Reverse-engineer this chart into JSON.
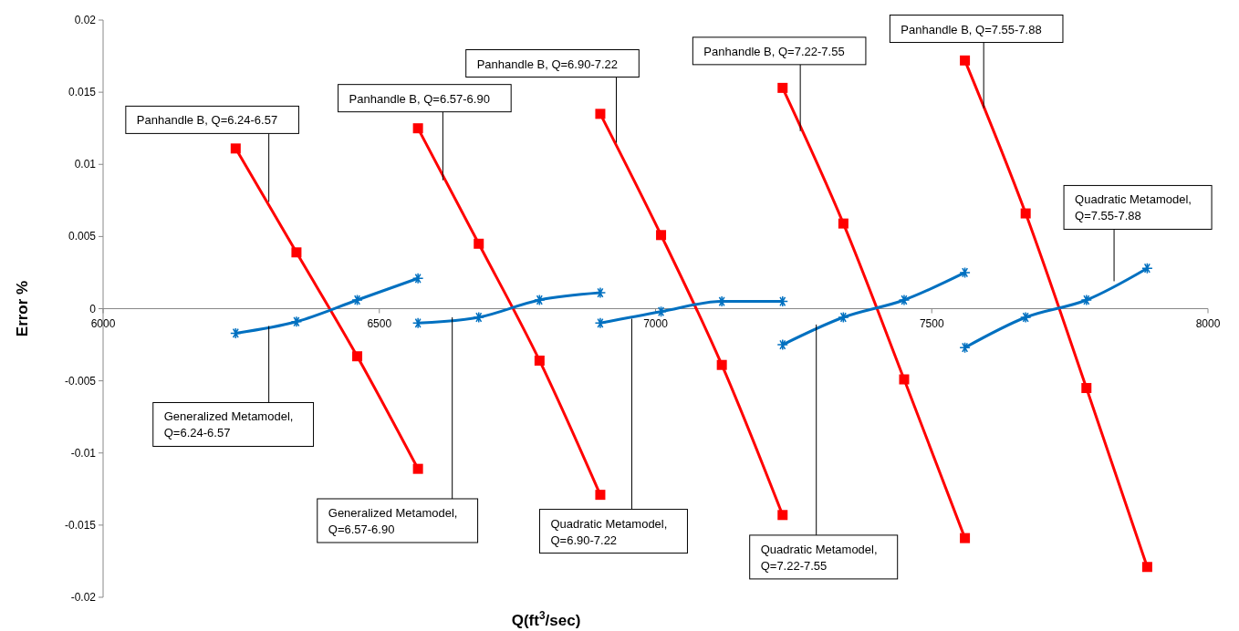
{
  "chart_data": {
    "type": "line",
    "xlabel": "Q(ft$^{3}$/sec)",
    "ylabel": "Error %",
    "xlim": [
      6000,
      8000
    ],
    "xticks": [
      6000,
      6500,
      7000,
      7500,
      8000
    ],
    "ylim": [
      -0.02,
      0.02
    ],
    "yticks": [
      -0.02,
      -0.015,
      -0.01,
      -0.005,
      0,
      0.005,
      0.01,
      0.015,
      0.02
    ],
    "grid": false,
    "line_style": "solid",
    "series": [
      {
        "color": "#ff0000",
        "marker": "square",
        "x": [
          6240,
          6350,
          6460,
          6570
        ],
        "values": [
          0.0111,
          0.0039,
          -0.0033,
          -0.0111
        ]
      },
      {
        "color": "#0070c0",
        "marker": "cross",
        "x": [
          6240,
          6350,
          6460,
          6570
        ],
        "values": [
          -0.0017,
          -0.0009,
          0.0006,
          0.0021
        ]
      },
      {
        "color": "#ff0000",
        "marker": "square",
        "x": [
          6570,
          6680,
          6790,
          6900
        ],
        "values": [
          0.0125,
          0.0045,
          -0.0036,
          -0.0129
        ]
      },
      {
        "color": "#0070c0",
        "marker": "cross",
        "x": [
          6570,
          6680,
          6790,
          6900
        ],
        "values": [
          -0.001,
          -0.0006,
          0.0006,
          0.0011
        ]
      },
      {
        "color": "#ff0000",
        "marker": "square",
        "x": [
          6900,
          7010,
          7120,
          7230
        ],
        "values": [
          0.0135,
          0.0051,
          -0.0039,
          -0.0143
        ]
      },
      {
        "color": "#0070c0",
        "marker": "cross",
        "x": [
          6900,
          7010,
          7120,
          7230
        ],
        "values": [
          -0.001,
          -0.0002,
          0.0005,
          0.0005
        ]
      },
      {
        "color": "#ff0000",
        "marker": "square",
        "x": [
          7230,
          7340,
          7450,
          7560
        ],
        "values": [
          0.0153,
          0.0059,
          -0.0049,
          -0.0159
        ]
      },
      {
        "color": "#0070c0",
        "marker": "cross",
        "x": [
          7230,
          7340,
          7450,
          7560
        ],
        "values": [
          -0.0025,
          -0.0006,
          0.0006,
          0.0025
        ]
      },
      {
        "color": "#ff0000",
        "marker": "square",
        "x": [
          7560,
          7670,
          7780,
          7890
        ],
        "values": [
          0.0172,
          0.0066,
          -0.0055,
          -0.0179
        ]
      },
      {
        "color": "#0070c0",
        "marker": "cross",
        "x": [
          7560,
          7670,
          7780,
          7890
        ],
        "values": [
          -0.0027,
          -0.0006,
          0.0006,
          0.0028
        ]
      }
    ],
    "annotations": [
      {
        "text": "Panhandle B, Q=6.24-6.57",
        "x": 6300,
        "y": 0.0074
      },
      {
        "text": "Panhandle B, Q=6.57-6.90",
        "x": 6615,
        "y": 0.0089
      },
      {
        "text": "Panhandle B, Q=6.90-7.22",
        "x": 6929,
        "y": 0.0115
      },
      {
        "text": "Panhandle B, Q=7.22-7.55",
        "x": 7262,
        "y": 0.0123
      },
      {
        "text": "Panhandle B, Q=7.55-7.88",
        "x": 7594,
        "y": 0.0139
      },
      {
        "text": "Generalized Metamodel,\nQ=6.24-6.57",
        "x": 6300,
        "y": -0.0012
      },
      {
        "text": "Generalized Metamodel,\nQ=6.57-6.90",
        "x": 6632,
        "y": -0.0006
      },
      {
        "text": "Quadratic Metamodel,\nQ=6.90-7.22",
        "x": 6957,
        "y": -0.0007
      },
      {
        "text": "Quadratic Metamodel,\nQ=7.22-7.55",
        "x": 7291,
        "y": -0.0011
      },
      {
        "text": "Quadratic Metamodel,\nQ=7.55-7.88",
        "x": 7830,
        "y": 0.0019
      }
    ]
  }
}
